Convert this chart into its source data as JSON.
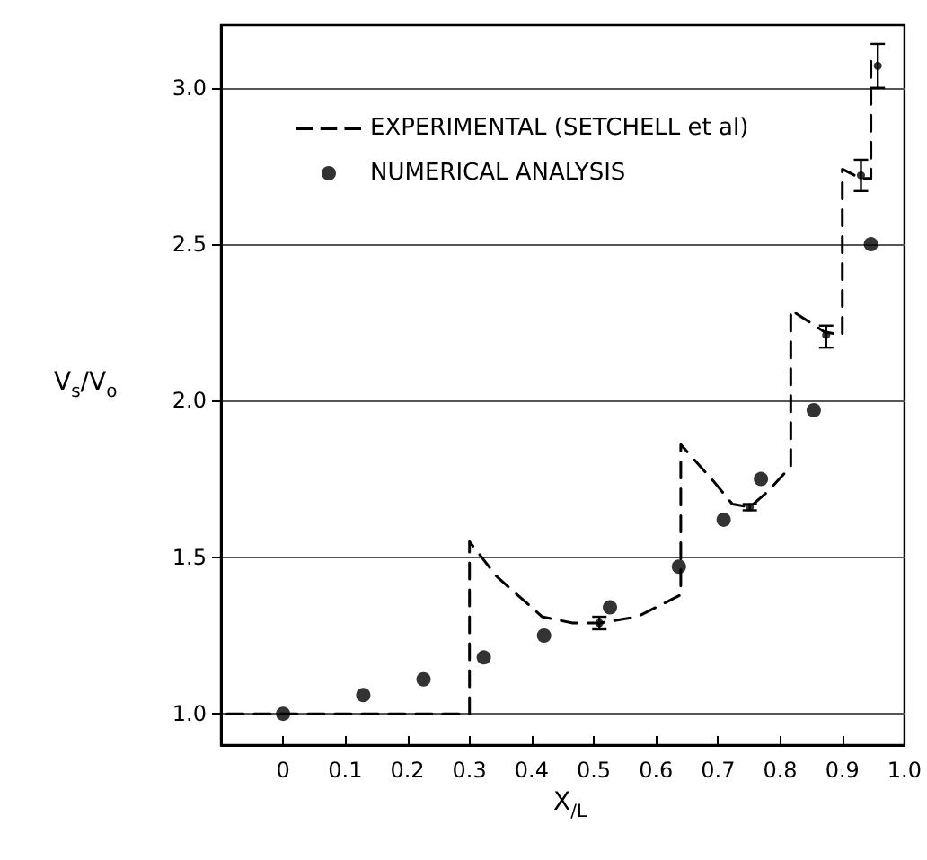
{
  "chart_data": {
    "type": "line",
    "xlabel": "X$_{/L}$",
    "ylabel": "V$_{s}$/V$_{o}$",
    "xlim": [
      -0.1,
      1.0
    ],
    "xticks": [
      0,
      0.1,
      0.2,
      0.3,
      0.4,
      0.5,
      0.6,
      0.7,
      0.8,
      0.9,
      {
        "value": 1,
        "label": "1.0"
      }
    ],
    "ylim": [
      0.9,
      3.2
    ],
    "yticks": [
      {
        "value": 1,
        "label": "1.0"
      },
      1.5,
      {
        "value": 2,
        "label": "2.0"
      },
      2.5,
      {
        "value": 3,
        "label": "3.0"
      }
    ],
    "grid": "y",
    "legend": "top left",
    "series": [
      {
        "name": "EXPERIMENTAL (SETCHELL et al)",
        "color": "#000000",
        "line_style": "dashed",
        "marker": "none",
        "x": [
          -0.09,
          0.3,
          0.3,
          0.343,
          0.417,
          0.466,
          0.509,
          0.57,
          0.64,
          0.64,
          0.694,
          0.723,
          0.751,
          0.78,
          0.817,
          0.817,
          0.871,
          0.9,
          0.9,
          0.93,
          0.946,
          0.946
        ],
        "values": [
          1.0,
          1.0,
          1.55,
          1.44,
          1.31,
          1.29,
          1.29,
          1.31,
          1.38,
          1.86,
          1.74,
          1.67,
          1.66,
          1.71,
          1.79,
          2.29,
          2.22,
          2.21,
          2.74,
          2.71,
          2.71,
          3.1
        ]
      },
      {
        "name": "NUMERICAL ANALYSIS",
        "type": "scatter",
        "color": "#000000",
        "marker": "circle",
        "x": [
          0,
          0.129,
          0.226,
          0.323,
          0.42,
          0.526,
          0.637,
          0.709,
          0.769,
          0.854,
          0.946
        ],
        "values": [
          1.0,
          1.06,
          1.11,
          1.18,
          1.25,
          1.34,
          1.47,
          1.62,
          1.75,
          1.97,
          2.5
        ]
      },
      {
        "type": "scatter",
        "color": "#000000",
        "marker": "circle",
        "x": [
          0.509,
          0.751,
          0.874,
          0.93,
          0.957
        ],
        "values": [
          1.29,
          1.66,
          2.21,
          2.72,
          3.07
        ],
        "errors": [
          [
            1.27,
            1.31
          ],
          [
            1.65,
            1.67
          ],
          [
            2.17,
            2.24
          ],
          [
            2.67,
            2.77
          ],
          [
            3.0,
            3.14
          ]
        ]
      }
    ]
  }
}
